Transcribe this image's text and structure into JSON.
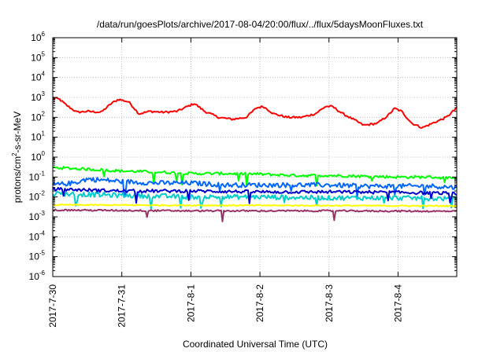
{
  "chart_data": {
    "type": "line",
    "title": "/data/run/goesPlots/archive/2017-08-04/20:00/flux/../flux/5daysMoonFluxes.txt",
    "xlabel": "Coordinated Universal Time (UTC)",
    "ylabel": {
      "base": "protons/cm",
      "sup": "2",
      "rest": "-s-sr-MeV"
    },
    "yscale": "log",
    "ylim_exp": [
      -6,
      6
    ],
    "y_tick_exponents": [
      6,
      5,
      4,
      3,
      2,
      1,
      0,
      -1,
      -2,
      -3,
      -4,
      -5,
      -6
    ],
    "y_tick_base": "10",
    "xlim_days": [
      0,
      5.85
    ],
    "x_ticks": [
      {
        "day": 0,
        "label": "2017-7-30"
      },
      {
        "day": 1,
        "label": "2017-7-31"
      },
      {
        "day": 2,
        "label": "2017-8-1"
      },
      {
        "day": 3,
        "label": "2017-8-2"
      },
      {
        "day": 4,
        "label": "2017-8-3"
      },
      {
        "day": 5,
        "label": "2017-8-4"
      }
    ],
    "grid": true,
    "series": [
      {
        "color": "#ff0000",
        "noise": 0.05,
        "spike_prob": 0.0,
        "anchors": [
          [
            0,
            1000
          ],
          [
            0.1,
            800
          ],
          [
            0.2,
            400
          ],
          [
            0.35,
            180
          ],
          [
            0.5,
            200
          ],
          [
            0.7,
            180
          ],
          [
            0.85,
            500
          ],
          [
            0.95,
            800
          ],
          [
            1.1,
            600
          ],
          [
            1.25,
            150
          ],
          [
            1.4,
            200
          ],
          [
            1.6,
            180
          ],
          [
            1.8,
            200
          ],
          [
            1.95,
            350
          ],
          [
            2.05,
            500
          ],
          [
            2.2,
            200
          ],
          [
            2.4,
            100
          ],
          [
            2.6,
            80
          ],
          [
            2.8,
            100
          ],
          [
            2.95,
            300
          ],
          [
            3.05,
            350
          ],
          [
            3.2,
            150
          ],
          [
            3.4,
            100
          ],
          [
            3.6,
            100
          ],
          [
            3.8,
            150
          ],
          [
            3.95,
            350
          ],
          [
            4.05,
            350
          ],
          [
            4.2,
            150
          ],
          [
            4.35,
            80
          ],
          [
            4.5,
            40
          ],
          [
            4.7,
            50
          ],
          [
            4.85,
            120
          ],
          [
            4.95,
            280
          ],
          [
            5.05,
            200
          ],
          [
            5.2,
            50
          ],
          [
            5.35,
            30
          ],
          [
            5.55,
            60
          ],
          [
            5.7,
            100
          ],
          [
            5.85,
            300
          ]
        ]
      },
      {
        "color": "#00ff00",
        "noise": 0.07,
        "spike_prob": 0.02,
        "anchors": [
          [
            0,
            0.3
          ],
          [
            0.5,
            0.25
          ],
          [
            1,
            0.2
          ],
          [
            1.5,
            0.18
          ],
          [
            2,
            0.15
          ],
          [
            2.5,
            0.15
          ],
          [
            3,
            0.14
          ],
          [
            3.5,
            0.12
          ],
          [
            4,
            0.12
          ],
          [
            4.5,
            0.11
          ],
          [
            5,
            0.1
          ],
          [
            5.5,
            0.1
          ],
          [
            5.85,
            0.08
          ]
        ]
      },
      {
        "color": "#0066ff",
        "noise": 0.12,
        "spike_prob": 0.03,
        "anchors": [
          [
            0,
            0.04
          ],
          [
            0.3,
            0.05
          ],
          [
            0.5,
            0.08
          ],
          [
            1,
            0.06
          ],
          [
            1.5,
            0.05
          ],
          [
            2,
            0.05
          ],
          [
            2.5,
            0.04
          ],
          [
            3,
            0.04
          ],
          [
            3.5,
            0.04
          ],
          [
            4,
            0.04
          ],
          [
            4.5,
            0.035
          ],
          [
            5,
            0.035
          ],
          [
            5.5,
            0.035
          ],
          [
            5.85,
            0.03
          ]
        ]
      },
      {
        "color": "#00cccc",
        "noise": 0.12,
        "spike_prob": 0.05,
        "anchors": [
          [
            0,
            0.015
          ],
          [
            1,
            0.012
          ],
          [
            2,
            0.01
          ],
          [
            3,
            0.01
          ],
          [
            4,
            0.009
          ],
          [
            5,
            0.009
          ],
          [
            5.85,
            0.008
          ]
        ]
      },
      {
        "color": "#0000cc",
        "noise": 0.08,
        "spike_prob": 0.02,
        "anchors": [
          [
            0,
            0.025
          ],
          [
            1,
            0.02
          ],
          [
            2,
            0.02
          ],
          [
            3,
            0.018
          ],
          [
            4,
            0.018
          ],
          [
            5,
            0.017
          ],
          [
            5.85,
            0.015
          ]
        ]
      },
      {
        "color": "#ffff00",
        "noise": 0.03,
        "spike_prob": 0.0,
        "anchors": [
          [
            0,
            0.004
          ],
          [
            2,
            0.0038
          ],
          [
            4,
            0.0037
          ],
          [
            5.85,
            0.0035
          ]
        ]
      },
      {
        "color": "#993366",
        "noise": 0.04,
        "spike_prob": 0.01,
        "anchors": [
          [
            0,
            0.0022
          ],
          [
            2,
            0.002
          ],
          [
            4,
            0.002
          ],
          [
            5.85,
            0.0019
          ]
        ]
      }
    ]
  }
}
